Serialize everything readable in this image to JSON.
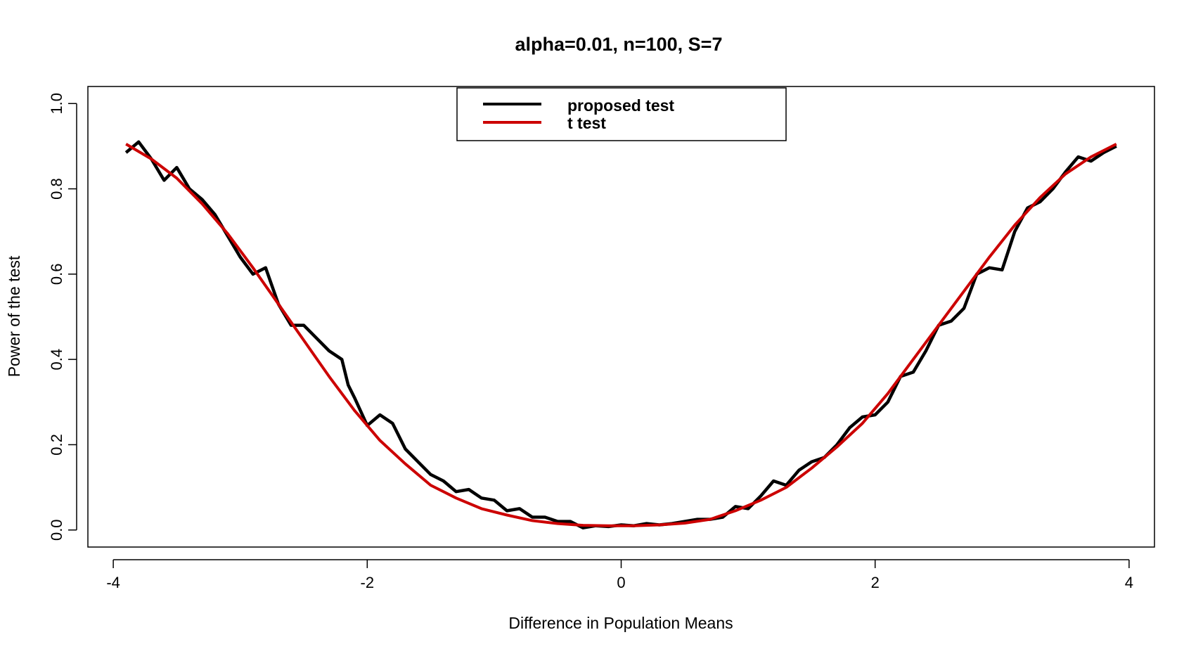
{
  "chart_data": {
    "type": "line",
    "title": "alpha=0.01, n=100, S=7",
    "xlabel": "Difference in Population Means",
    "ylabel": "Power of the test",
    "xlim": [
      -4.2,
      4.2
    ],
    "ylim": [
      -0.04,
      1.04
    ],
    "xticks": [
      -4,
      -2,
      0,
      2,
      4
    ],
    "xtick_labels": [
      "-4",
      "-2",
      "0",
      "2",
      "4"
    ],
    "yticks": [
      0.0,
      0.2,
      0.4,
      0.6,
      0.8,
      1.0
    ],
    "ytick_labels": [
      "0.0",
      "0.2",
      "0.4",
      "0.6",
      "0.8",
      "1.0"
    ],
    "grid": false,
    "legend_position": "top-center",
    "colors": {
      "proposed": "#000000",
      "ttest": "#cc0000",
      "axes": "#000000"
    },
    "series": [
      {
        "name": "proposed test",
        "color": "#000000",
        "x": [
          -3.9,
          -3.8,
          -3.7,
          -3.6,
          -3.5,
          -3.4,
          -3.3,
          -3.2,
          -3.1,
          -3.0,
          -2.9,
          -2.8,
          -2.7,
          -2.6,
          -2.5,
          -2.4,
          -2.3,
          -2.2,
          -2.15,
          -2.1,
          -2.0,
          -1.9,
          -1.8,
          -1.7,
          -1.6,
          -1.5,
          -1.4,
          -1.3,
          -1.2,
          -1.1,
          -1.0,
          -0.9,
          -0.8,
          -0.7,
          -0.6,
          -0.5,
          -0.4,
          -0.3,
          -0.2,
          -0.1,
          0.0,
          0.1,
          0.2,
          0.3,
          0.4,
          0.5,
          0.6,
          0.7,
          0.8,
          0.9,
          1.0,
          1.1,
          1.2,
          1.3,
          1.4,
          1.5,
          1.6,
          1.7,
          1.8,
          1.9,
          2.0,
          2.1,
          2.2,
          2.3,
          2.4,
          2.5,
          2.6,
          2.7,
          2.8,
          2.9,
          3.0,
          3.1,
          3.2,
          3.3,
          3.4,
          3.5,
          3.6,
          3.7,
          3.8,
          3.9
        ],
        "values": [
          0.885,
          0.91,
          0.87,
          0.82,
          0.85,
          0.8,
          0.775,
          0.74,
          0.69,
          0.64,
          0.6,
          0.615,
          0.53,
          0.48,
          0.48,
          0.45,
          0.42,
          0.4,
          0.34,
          0.31,
          0.245,
          0.27,
          0.25,
          0.19,
          0.16,
          0.13,
          0.115,
          0.09,
          0.095,
          0.075,
          0.07,
          0.045,
          0.05,
          0.03,
          0.03,
          0.02,
          0.02,
          0.005,
          0.01,
          0.008,
          0.012,
          0.01,
          0.015,
          0.012,
          0.015,
          0.02,
          0.025,
          0.025,
          0.03,
          0.055,
          0.05,
          0.08,
          0.115,
          0.105,
          0.14,
          0.16,
          0.17,
          0.2,
          0.24,
          0.265,
          0.27,
          0.3,
          0.36,
          0.37,
          0.42,
          0.48,
          0.49,
          0.52,
          0.6,
          0.615,
          0.61,
          0.7,
          0.755,
          0.77,
          0.8,
          0.84,
          0.875,
          0.865,
          0.885,
          0.9
        ]
      },
      {
        "name": "t test",
        "color": "#cc0000",
        "x": [
          -3.9,
          -3.7,
          -3.5,
          -3.3,
          -3.1,
          -2.9,
          -2.7,
          -2.5,
          -2.3,
          -2.1,
          -1.9,
          -1.7,
          -1.5,
          -1.3,
          -1.1,
          -0.9,
          -0.7,
          -0.5,
          -0.3,
          -0.1,
          0.1,
          0.3,
          0.5,
          0.7,
          0.9,
          1.1,
          1.3,
          1.5,
          1.7,
          1.9,
          2.1,
          2.3,
          2.5,
          2.7,
          2.9,
          3.1,
          3.3,
          3.5,
          3.7,
          3.9
        ],
        "values": [
          0.905,
          0.87,
          0.825,
          0.765,
          0.695,
          0.615,
          0.53,
          0.445,
          0.36,
          0.28,
          0.21,
          0.155,
          0.105,
          0.075,
          0.05,
          0.035,
          0.022,
          0.015,
          0.011,
          0.01,
          0.01,
          0.012,
          0.016,
          0.025,
          0.045,
          0.07,
          0.1,
          0.145,
          0.195,
          0.25,
          0.32,
          0.4,
          0.48,
          0.56,
          0.64,
          0.715,
          0.78,
          0.835,
          0.875,
          0.905
        ]
      }
    ]
  }
}
